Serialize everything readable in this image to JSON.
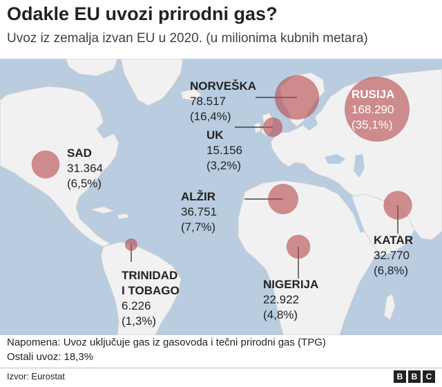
{
  "title": "Odakle EU uvozi prirodni gas?",
  "subtitle": "Uvoz iz zemalja izvan EU u 2020. (u milionima kubnih metara)",
  "countries": [
    {
      "id": "norway",
      "name": "NORVEŠKA",
      "value": "78.517",
      "share": "(16,4%)",
      "amount": 78517
    },
    {
      "id": "russia",
      "name": "RUSIJA",
      "value": "168.290",
      "share": "(35,1%)",
      "amount": 168290
    },
    {
      "id": "uk",
      "name": "UK",
      "value": "15.156",
      "share": "(3,2%)",
      "amount": 15156
    },
    {
      "id": "usa",
      "name": "SAD",
      "value": "31.364",
      "share": "(6,5%)",
      "amount": 31364
    },
    {
      "id": "algeria",
      "name": "ALŽIR",
      "value": "36.751",
      "share": "(7,7%)",
      "amount": 36751
    },
    {
      "id": "qatar",
      "name": "KATAR",
      "value": "32.770",
      "share": "(6,8%)",
      "amount": 32770
    },
    {
      "id": "trinidad",
      "name_line1": "TRINIDAD",
      "name_line2": "I TOBAGO",
      "value": "6.226",
      "share": "(1,3%)",
      "amount": 6226
    },
    {
      "id": "nigeria",
      "name": "NIGERIJA",
      "value": "22.922",
      "share": "(4,8%)",
      "amount": 22922
    }
  ],
  "note": "Napomena: Uvoz uključuje gas iz gasovoda i tečni prirodni gas (TPG)",
  "other_imports": "Ostali uvoz: 18,3%",
  "source": "Izvor: Eurostat",
  "logo": [
    "B",
    "B",
    "C"
  ],
  "colors": {
    "ocean": "#b9cce0",
    "land": "#f1f1f1",
    "border": "#cfcfcf",
    "bubble": "#b5474d",
    "text": "#222222"
  }
}
